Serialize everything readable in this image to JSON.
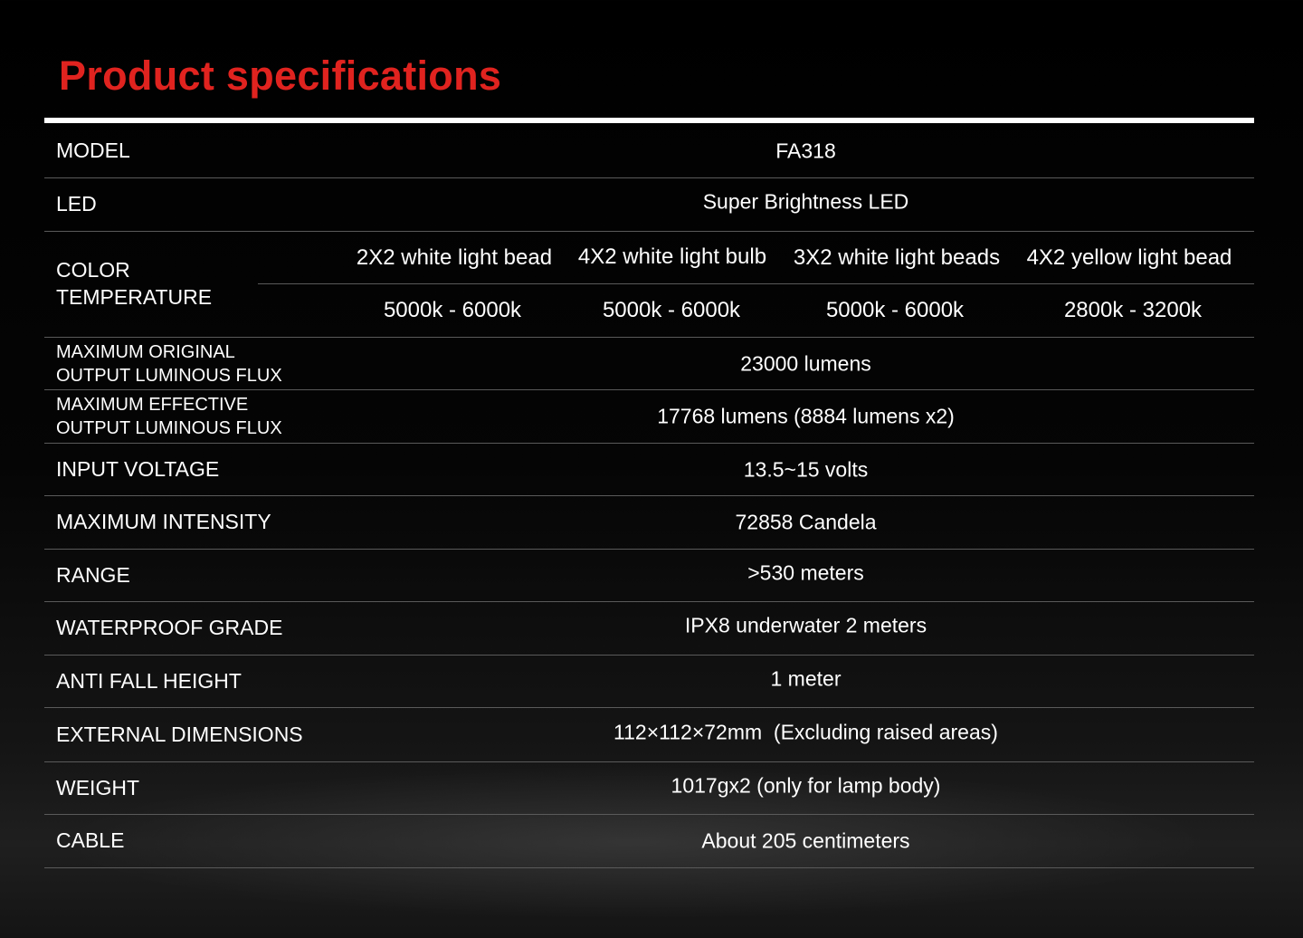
{
  "title": "Product specifications",
  "colors": {
    "title": "#e0231f",
    "text": "#ffffff",
    "background": "#000000"
  },
  "specs": [
    {
      "label": "MODEL",
      "value": "FA318"
    },
    {
      "label": "LED",
      "value": "Super Brightness LED"
    },
    {
      "label": "MAXIMUM ORIGINAL OUTPUT LUMINOUS FLUX",
      "value": "23000 lumens"
    },
    {
      "label": "MAXIMUM EFFECTIVE OUTPUT LUMINOUS FLUX",
      "value": "17768 lumens (8884 lumens x2)"
    },
    {
      "label": "INPUT VOLTAGE",
      "value": "13.5~15 volts"
    },
    {
      "label": "MAXIMUM INTENSITY",
      "value": "72858 Candela"
    },
    {
      "label": "RANGE",
      "value": ">530 meters"
    },
    {
      "label": "WATERPROOF GRADE",
      "value": "IPX8 underwater 2 meters"
    },
    {
      "label": "ANTI FALL HEIGHT",
      "value": "1 meter"
    },
    {
      "label": "EXTERNAL DIMENSIONS",
      "value": "112×112×72mm  (Excluding raised areas)"
    },
    {
      "label": "WEIGHT",
      "value": "1017gx2 (only for lamp body)"
    },
    {
      "label": "CABLE",
      "value": "About 205 centimeters"
    }
  ],
  "color_temperature": {
    "label_line1": "COLOR",
    "label_line2": "TEMPERATURE",
    "options": [
      {
        "type": "2X2 white light bead",
        "range": "5000k - 6000k"
      },
      {
        "type": "4X2 white light bulb",
        "range": "5000k - 6000k"
      },
      {
        "type": "3X2 white light beads",
        "range": "5000k - 6000k"
      },
      {
        "type": "4X2 yellow light bead",
        "range": "2800k - 3200k"
      }
    ]
  },
  "label_parts": {
    "orig1": "MAXIMUM ORIGINAL",
    "orig2": "OUTPUT LUMINOUS FLUX",
    "eff1": "MAXIMUM EFFECTIVE",
    "eff2": "OUTPUT LUMINOUS FLUX"
  }
}
